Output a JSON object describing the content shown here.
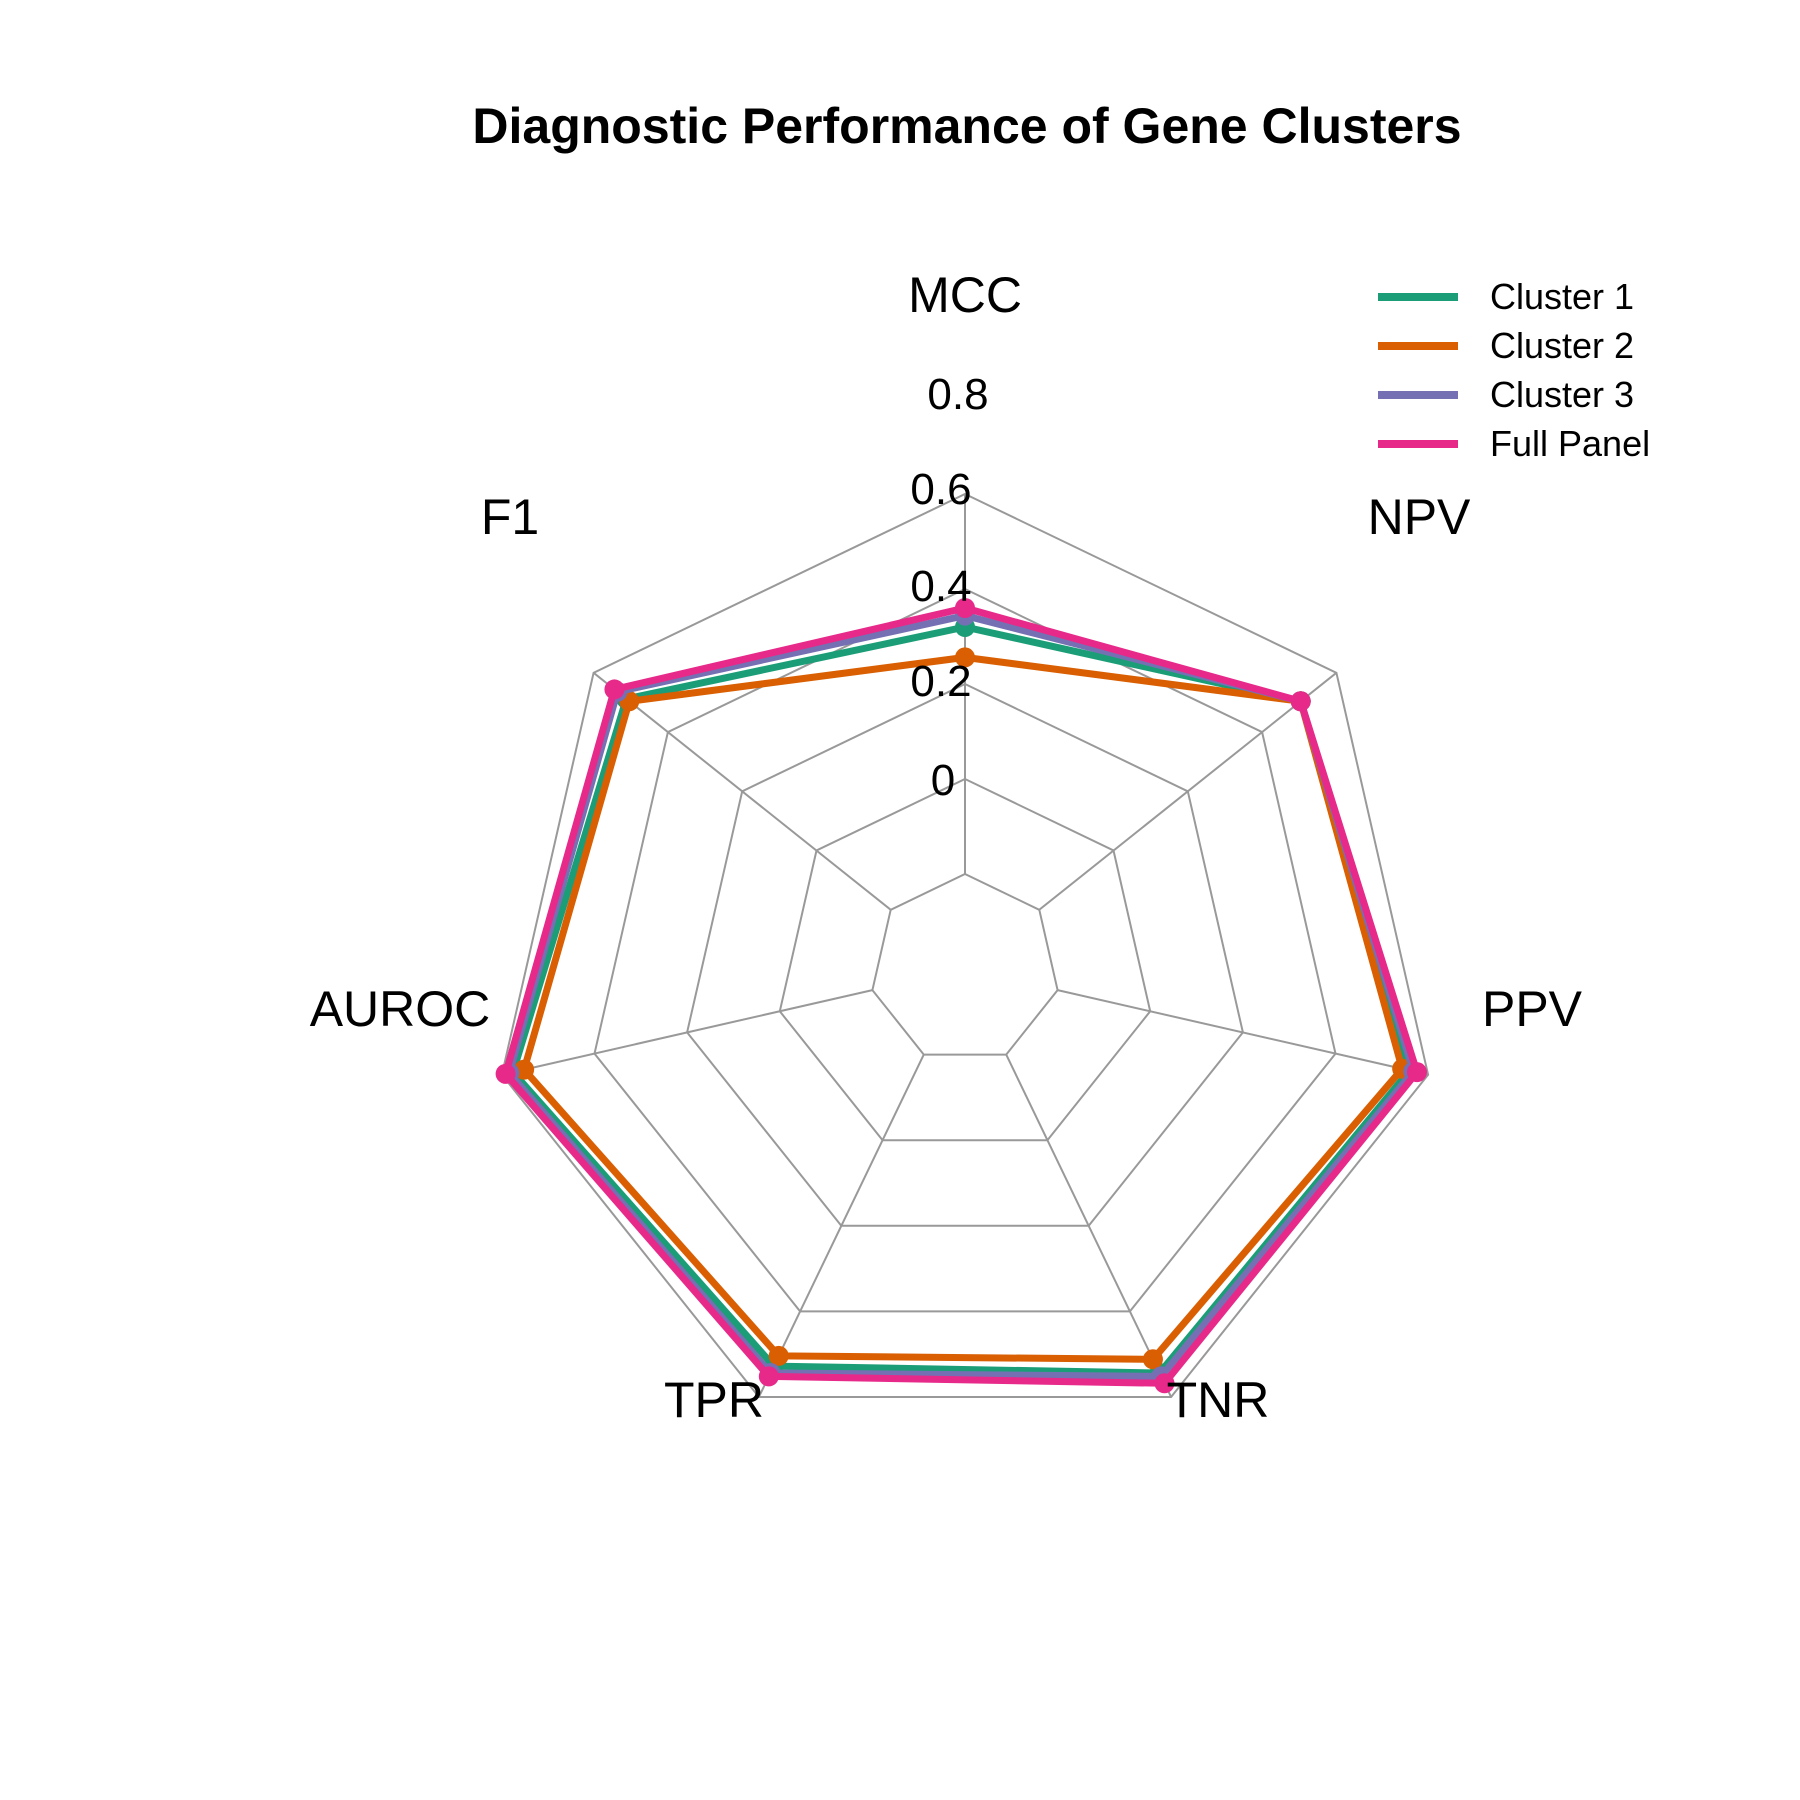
{
  "chart_data": {
    "type": "radar",
    "title": "Diagnostic Performance of Gene Clusters",
    "axes": [
      "MCC",
      "NPV",
      "PPV",
      "TNR",
      "TPR",
      "AUROC",
      "F1"
    ],
    "rlim": [
      0,
      1
    ],
    "ticks": [
      0,
      0.2,
      0.4,
      0.6,
      0.8
    ],
    "tick_labels": [
      "0",
      "0.2",
      "0.4",
      "0.6",
      "0.8"
    ],
    "grid": true,
    "legend_position": "top-right",
    "series": [
      {
        "name": "Cluster 1",
        "color": "#1b9e77",
        "values": [
          0.65,
          0.88,
          0.95,
          0.93,
          0.91,
          0.97,
          0.89
        ]
      },
      {
        "name": "Cluster 2",
        "color": "#d95f02",
        "values": [
          0.57,
          0.88,
          0.93,
          0.89,
          0.88,
          0.94,
          0.88
        ]
      },
      {
        "name": "Cluster 3",
        "color": "#7570b3",
        "values": [
          0.68,
          0.88,
          0.96,
          0.94,
          0.93,
          0.98,
          0.92
        ]
      },
      {
        "name": "Full Panel",
        "color": "#e7298a",
        "values": [
          0.7,
          0.88,
          0.97,
          0.96,
          0.94,
          0.99,
          0.93
        ]
      }
    ]
  }
}
